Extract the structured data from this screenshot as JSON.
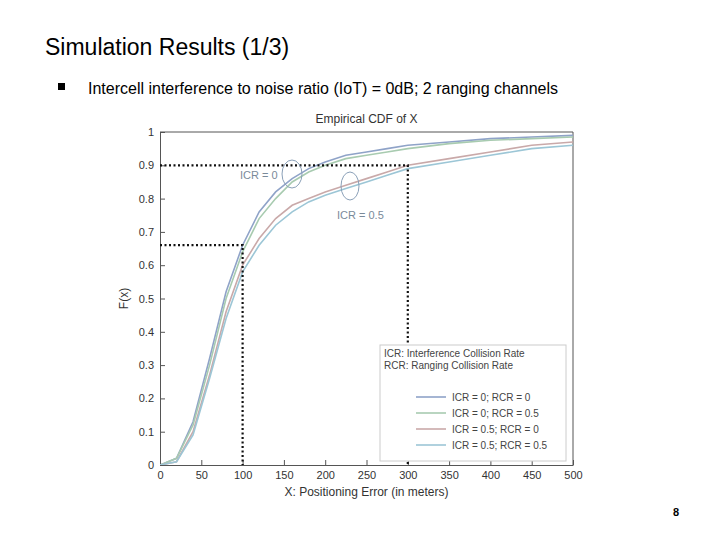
{
  "slide": {
    "title": "Simulation Results (1/3)",
    "bullet": "Intercell interference to noise ratio (IoT) = 0dB; 2 ranging channels",
    "page_number": 8
  },
  "chart_data": {
    "type": "line",
    "title": "Empirical CDF of X",
    "x_label": "X: Positioning Error (in meters)",
    "y_label": "F(x)",
    "x": [
      0,
      20,
      40,
      60,
      80,
      100,
      120,
      140,
      160,
      180,
      200,
      225,
      250,
      275,
      300,
      350,
      400,
      450,
      500
    ],
    "series": [
      {
        "name": "ICR = 0; RCR = 0",
        "color": "#8fa3c8",
        "values": [
          0,
          0.02,
          0.13,
          0.32,
          0.52,
          0.66,
          0.76,
          0.82,
          0.86,
          0.89,
          0.91,
          0.93,
          0.94,
          0.95,
          0.96,
          0.97,
          0.98,
          0.985,
          0.99
        ]
      },
      {
        "name": "ICR = 0; RCR = 0.5",
        "color": "#a8cbb0",
        "values": [
          0,
          0.02,
          0.12,
          0.3,
          0.5,
          0.64,
          0.74,
          0.8,
          0.85,
          0.88,
          0.9,
          0.92,
          0.93,
          0.94,
          0.95,
          0.965,
          0.975,
          0.98,
          0.985
        ]
      },
      {
        "name": "ICR = 0.5; RCR = 0",
        "color": "#c9a9a9",
        "values": [
          0,
          0.01,
          0.1,
          0.27,
          0.46,
          0.6,
          0.68,
          0.74,
          0.78,
          0.8,
          0.82,
          0.84,
          0.86,
          0.88,
          0.9,
          0.92,
          0.94,
          0.96,
          0.97
        ]
      },
      {
        "name": "ICR = 0.5; RCR = 0.5",
        "color": "#9cc6d6",
        "values": [
          0,
          0.01,
          0.09,
          0.26,
          0.44,
          0.58,
          0.66,
          0.72,
          0.76,
          0.79,
          0.81,
          0.83,
          0.85,
          0.87,
          0.89,
          0.91,
          0.93,
          0.95,
          0.96
        ]
      }
    ],
    "xlim": [
      0,
      500
    ],
    "xticks": [
      0,
      50,
      100,
      150,
      200,
      250,
      300,
      350,
      400,
      450,
      500
    ],
    "ylim": [
      0,
      1
    ],
    "yticks": [
      0,
      0.1,
      0.2,
      0.3,
      0.4,
      0.5,
      0.6,
      0.7,
      0.8,
      0.9,
      1
    ],
    "grid": false,
    "legend": "lower right",
    "reference_lines": [
      {
        "x": 300,
        "y": 0.9
      },
      {
        "x": 100,
        "y": 0.66
      }
    ],
    "annotations": [
      {
        "text": "ICR = 0"
      },
      {
        "text": "ICR = 0.5"
      }
    ],
    "notes": [
      "ICR: Interference Collision Rate",
      "RCR: Ranging Collision Rate"
    ]
  }
}
